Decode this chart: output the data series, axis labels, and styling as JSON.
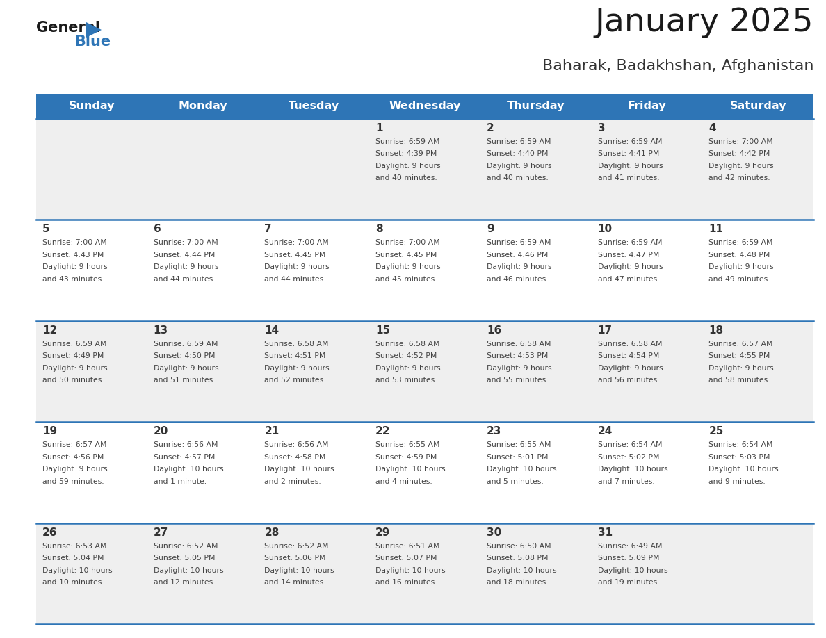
{
  "title": "January 2025",
  "subtitle": "Baharak, Badakhshan, Afghanistan",
  "header_bg": "#2E75B6",
  "header_text_color": "#FFFFFF",
  "days_of_week": [
    "Sunday",
    "Monday",
    "Tuesday",
    "Wednesday",
    "Thursday",
    "Friday",
    "Saturday"
  ],
  "row_bg_odd": "#EFEFEF",
  "row_bg_even": "#FFFFFF",
  "cell_text_color": "#444444",
  "day_num_color": "#333333",
  "separator_color": "#2E75B6",
  "calendar_data": [
    [
      {
        "day": "",
        "sunrise": "",
        "sunset": "",
        "daylight": ""
      },
      {
        "day": "",
        "sunrise": "",
        "sunset": "",
        "daylight": ""
      },
      {
        "day": "",
        "sunrise": "",
        "sunset": "",
        "daylight": ""
      },
      {
        "day": "1",
        "sunrise": "6:59 AM",
        "sunset": "4:39 PM",
        "daylight": "9 hours\nand 40 minutes."
      },
      {
        "day": "2",
        "sunrise": "6:59 AM",
        "sunset": "4:40 PM",
        "daylight": "9 hours\nand 40 minutes."
      },
      {
        "day": "3",
        "sunrise": "6:59 AM",
        "sunset": "4:41 PM",
        "daylight": "9 hours\nand 41 minutes."
      },
      {
        "day": "4",
        "sunrise": "7:00 AM",
        "sunset": "4:42 PM",
        "daylight": "9 hours\nand 42 minutes."
      }
    ],
    [
      {
        "day": "5",
        "sunrise": "7:00 AM",
        "sunset": "4:43 PM",
        "daylight": "9 hours\nand 43 minutes."
      },
      {
        "day": "6",
        "sunrise": "7:00 AM",
        "sunset": "4:44 PM",
        "daylight": "9 hours\nand 44 minutes."
      },
      {
        "day": "7",
        "sunrise": "7:00 AM",
        "sunset": "4:45 PM",
        "daylight": "9 hours\nand 44 minutes."
      },
      {
        "day": "8",
        "sunrise": "7:00 AM",
        "sunset": "4:45 PM",
        "daylight": "9 hours\nand 45 minutes."
      },
      {
        "day": "9",
        "sunrise": "6:59 AM",
        "sunset": "4:46 PM",
        "daylight": "9 hours\nand 46 minutes."
      },
      {
        "day": "10",
        "sunrise": "6:59 AM",
        "sunset": "4:47 PM",
        "daylight": "9 hours\nand 47 minutes."
      },
      {
        "day": "11",
        "sunrise": "6:59 AM",
        "sunset": "4:48 PM",
        "daylight": "9 hours\nand 49 minutes."
      }
    ],
    [
      {
        "day": "12",
        "sunrise": "6:59 AM",
        "sunset": "4:49 PM",
        "daylight": "9 hours\nand 50 minutes."
      },
      {
        "day": "13",
        "sunrise": "6:59 AM",
        "sunset": "4:50 PM",
        "daylight": "9 hours\nand 51 minutes."
      },
      {
        "day": "14",
        "sunrise": "6:58 AM",
        "sunset": "4:51 PM",
        "daylight": "9 hours\nand 52 minutes."
      },
      {
        "day": "15",
        "sunrise": "6:58 AM",
        "sunset": "4:52 PM",
        "daylight": "9 hours\nand 53 minutes."
      },
      {
        "day": "16",
        "sunrise": "6:58 AM",
        "sunset": "4:53 PM",
        "daylight": "9 hours\nand 55 minutes."
      },
      {
        "day": "17",
        "sunrise": "6:58 AM",
        "sunset": "4:54 PM",
        "daylight": "9 hours\nand 56 minutes."
      },
      {
        "day": "18",
        "sunrise": "6:57 AM",
        "sunset": "4:55 PM",
        "daylight": "9 hours\nand 58 minutes."
      }
    ],
    [
      {
        "day": "19",
        "sunrise": "6:57 AM",
        "sunset": "4:56 PM",
        "daylight": "9 hours\nand 59 minutes."
      },
      {
        "day": "20",
        "sunrise": "6:56 AM",
        "sunset": "4:57 PM",
        "daylight": "10 hours\nand 1 minute."
      },
      {
        "day": "21",
        "sunrise": "6:56 AM",
        "sunset": "4:58 PM",
        "daylight": "10 hours\nand 2 minutes."
      },
      {
        "day": "22",
        "sunrise": "6:55 AM",
        "sunset": "4:59 PM",
        "daylight": "10 hours\nand 4 minutes."
      },
      {
        "day": "23",
        "sunrise": "6:55 AM",
        "sunset": "5:01 PM",
        "daylight": "10 hours\nand 5 minutes."
      },
      {
        "day": "24",
        "sunrise": "6:54 AM",
        "sunset": "5:02 PM",
        "daylight": "10 hours\nand 7 minutes."
      },
      {
        "day": "25",
        "sunrise": "6:54 AM",
        "sunset": "5:03 PM",
        "daylight": "10 hours\nand 9 minutes."
      }
    ],
    [
      {
        "day": "26",
        "sunrise": "6:53 AM",
        "sunset": "5:04 PM",
        "daylight": "10 hours\nand 10 minutes."
      },
      {
        "day": "27",
        "sunrise": "6:52 AM",
        "sunset": "5:05 PM",
        "daylight": "10 hours\nand 12 minutes."
      },
      {
        "day": "28",
        "sunrise": "6:52 AM",
        "sunset": "5:06 PM",
        "daylight": "10 hours\nand 14 minutes."
      },
      {
        "day": "29",
        "sunrise": "6:51 AM",
        "sunset": "5:07 PM",
        "daylight": "10 hours\nand 16 minutes."
      },
      {
        "day": "30",
        "sunrise": "6:50 AM",
        "sunset": "5:08 PM",
        "daylight": "10 hours\nand 18 minutes."
      },
      {
        "day": "31",
        "sunrise": "6:49 AM",
        "sunset": "5:09 PM",
        "daylight": "10 hours\nand 19 minutes."
      },
      {
        "day": "",
        "sunrise": "",
        "sunset": "",
        "daylight": ""
      }
    ]
  ]
}
